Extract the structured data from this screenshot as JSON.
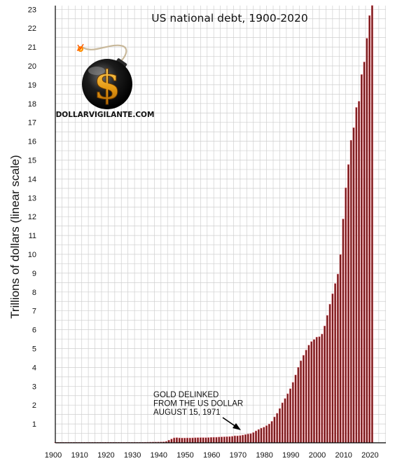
{
  "chart_data": {
    "type": "bar",
    "title": "US national debt, 1900-2020",
    "ylabel": "Trillions of dollars (linear scale)",
    "xlabel": "",
    "xlim": [
      1900,
      2021
    ],
    "ylim": [
      0,
      23.2
    ],
    "x_ticks": [
      "1900",
      "1910",
      "1920",
      "1930",
      "1940",
      "1950",
      "1960",
      "1970",
      "1980",
      "1990",
      "2000",
      "2010",
      "2020"
    ],
    "y_ticks": [
      "1",
      "2",
      "3",
      "4",
      "5",
      "6",
      "7",
      "8",
      "9",
      "10",
      "11",
      "12",
      "13",
      "14",
      "15",
      "16",
      "17",
      "18",
      "19",
      "20",
      "21",
      "22",
      "23"
    ],
    "grid": true,
    "x": [
      1900,
      1901,
      1902,
      1903,
      1904,
      1905,
      1906,
      1907,
      1908,
      1909,
      1910,
      1911,
      1912,
      1913,
      1914,
      1915,
      1916,
      1917,
      1918,
      1919,
      1920,
      1921,
      1922,
      1923,
      1924,
      1925,
      1926,
      1927,
      1928,
      1929,
      1930,
      1931,
      1932,
      1933,
      1934,
      1935,
      1936,
      1937,
      1938,
      1939,
      1940,
      1941,
      1942,
      1943,
      1944,
      1945,
      1946,
      1947,
      1948,
      1949,
      1950,
      1951,
      1952,
      1953,
      1954,
      1955,
      1956,
      1957,
      1958,
      1959,
      1960,
      1961,
      1962,
      1963,
      1964,
      1965,
      1966,
      1967,
      1968,
      1969,
      1970,
      1971,
      1972,
      1973,
      1974,
      1975,
      1976,
      1977,
      1978,
      1979,
      1980,
      1981,
      1982,
      1983,
      1984,
      1985,
      1986,
      1987,
      1988,
      1989,
      1990,
      1991,
      1992,
      1993,
      1994,
      1995,
      1996,
      1997,
      1998,
      1999,
      2000,
      2001,
      2002,
      2003,
      2004,
      2005,
      2006,
      2007,
      2008,
      2009,
      2010,
      2011,
      2012,
      2013,
      2014,
      2015,
      2016,
      2017,
      2018,
      2019,
      2020
    ],
    "values": [
      0.0012,
      0.0012,
      0.0012,
      0.0012,
      0.0012,
      0.0012,
      0.0011,
      0.0011,
      0.0012,
      0.0012,
      0.0012,
      0.0012,
      0.0012,
      0.0012,
      0.0012,
      0.0012,
      0.0012,
      0.003,
      0.012,
      0.025,
      0.024,
      0.024,
      0.023,
      0.022,
      0.021,
      0.021,
      0.02,
      0.018,
      0.018,
      0.017,
      0.016,
      0.017,
      0.019,
      0.022,
      0.027,
      0.029,
      0.034,
      0.036,
      0.037,
      0.04,
      0.043,
      0.049,
      0.072,
      0.137,
      0.201,
      0.26,
      0.271,
      0.257,
      0.252,
      0.253,
      0.257,
      0.255,
      0.259,
      0.266,
      0.271,
      0.274,
      0.273,
      0.271,
      0.276,
      0.285,
      0.291,
      0.293,
      0.303,
      0.31,
      0.316,
      0.322,
      0.328,
      0.34,
      0.368,
      0.365,
      0.381,
      0.408,
      0.436,
      0.466,
      0.484,
      0.542,
      0.629,
      0.706,
      0.777,
      0.829,
      0.909,
      0.995,
      1.137,
      1.371,
      1.564,
      1.817,
      2.12,
      2.346,
      2.601,
      2.868,
      3.206,
      3.598,
      4.002,
      4.351,
      4.643,
      4.921,
      5.181,
      5.369,
      5.478,
      5.606,
      5.629,
      5.77,
      6.198,
      6.76,
      7.355,
      7.905,
      8.451,
      8.951,
      9.986,
      11.876,
      13.529,
      14.764,
      16.051,
      16.719,
      17.794,
      18.12,
      19.539,
      20.206,
      21.462,
      22.669,
      23.201
    ],
    "annotations": [
      {
        "text": "GOLD DELINKED\nFROM THE US DOLLAR\nAUGUST 15, 1971",
        "x": 1971,
        "y": 0.41
      }
    ],
    "legend": "none"
  },
  "logo": {
    "text": "DOLLARVIGILANTE.COM",
    "symbol": "$",
    "icon": "bomb-icon"
  },
  "colors": {
    "bar_fill": "#6e1010",
    "bar_edge": "#d9707a",
    "grid": "#cfcfcf",
    "axis": "#000000",
    "background": "#ffffff"
  }
}
